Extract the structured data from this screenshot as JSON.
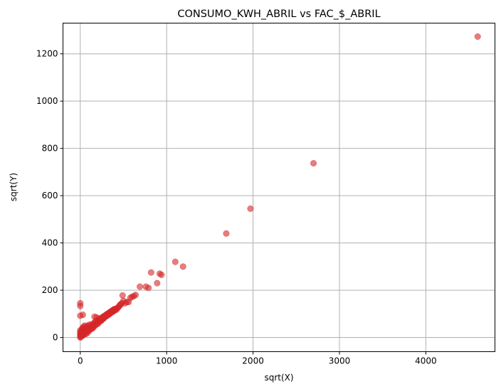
{
  "chart_data": {
    "type": "scatter",
    "title": "CONSUMO_KWH_ABRIL vs FAC_$_ABRIL",
    "xlabel": "sqrt(X)",
    "ylabel": "sqrt(Y)",
    "xlim": [
      -200,
      4800
    ],
    "ylim": [
      -60,
      1330
    ],
    "xticks": [
      0,
      1000,
      2000,
      3000,
      4000
    ],
    "yticks": [
      0,
      200,
      400,
      600,
      800,
      1000,
      1200
    ],
    "xtick_labels": [
      "0",
      "1000",
      "2000",
      "3000",
      "4000"
    ],
    "ytick_labels": [
      "0",
      "200",
      "400",
      "600",
      "800",
      "1000",
      "1200"
    ],
    "grid": true,
    "marker_color": "#d62728",
    "points": [
      [
        0,
        0
      ],
      [
        0,
        8
      ],
      [
        0,
        15
      ],
      [
        0,
        22
      ],
      [
        0,
        30
      ],
      [
        0,
        92
      ],
      [
        0,
        133
      ],
      [
        0,
        145
      ],
      [
        5,
        3
      ],
      [
        8,
        12
      ],
      [
        10,
        20
      ],
      [
        12,
        5
      ],
      [
        15,
        28
      ],
      [
        18,
        10
      ],
      [
        20,
        35
      ],
      [
        22,
        18
      ],
      [
        25,
        40
      ],
      [
        28,
        22
      ],
      [
        30,
        8
      ],
      [
        30,
        96
      ],
      [
        32,
        30
      ],
      [
        35,
        15
      ],
      [
        38,
        45
      ],
      [
        40,
        12
      ],
      [
        42,
        25
      ],
      [
        45,
        35
      ],
      [
        48,
        18
      ],
      [
        50,
        50
      ],
      [
        55,
        22
      ],
      [
        60,
        30
      ],
      [
        62,
        42
      ],
      [
        65,
        15
      ],
      [
        70,
        38
      ],
      [
        75,
        25
      ],
      [
        80,
        48
      ],
      [
        85,
        20
      ],
      [
        90,
        35
      ],
      [
        95,
        52
      ],
      [
        100,
        28
      ],
      [
        105,
        40
      ],
      [
        110,
        32
      ],
      [
        115,
        55
      ],
      [
        120,
        35
      ],
      [
        125,
        45
      ],
      [
        130,
        40
      ],
      [
        135,
        50
      ],
      [
        140,
        38
      ],
      [
        145,
        55
      ],
      [
        150,
        42
      ],
      [
        155,
        60
      ],
      [
        160,
        48
      ],
      [
        165,
        88
      ],
      [
        170,
        65
      ],
      [
        175,
        52
      ],
      [
        180,
        70
      ],
      [
        185,
        55
      ],
      [
        190,
        85
      ],
      [
        195,
        62
      ],
      [
        200,
        68
      ],
      [
        205,
        58
      ],
      [
        210,
        75
      ],
      [
        215,
        65
      ],
      [
        220,
        80
      ],
      [
        225,
        68
      ],
      [
        230,
        72
      ],
      [
        235,
        78
      ],
      [
        240,
        70
      ],
      [
        245,
        82
      ],
      [
        250,
        75
      ],
      [
        255,
        85
      ],
      [
        260,
        78
      ],
      [
        265,
        88
      ],
      [
        270,
        80
      ],
      [
        275,
        90
      ],
      [
        280,
        85
      ],
      [
        285,
        92
      ],
      [
        290,
        88
      ],
      [
        295,
        95
      ],
      [
        300,
        90
      ],
      [
        305,
        98
      ],
      [
        310,
        92
      ],
      [
        315,
        100
      ],
      [
        320,
        95
      ],
      [
        325,
        102
      ],
      [
        330,
        98
      ],
      [
        335,
        105
      ],
      [
        340,
        100
      ],
      [
        345,
        108
      ],
      [
        350,
        103
      ],
      [
        355,
        110
      ],
      [
        360,
        106
      ],
      [
        365,
        112
      ],
      [
        370,
        108
      ],
      [
        375,
        115
      ],
      [
        380,
        110
      ],
      [
        385,
        118
      ],
      [
        390,
        113
      ],
      [
        395,
        120
      ],
      [
        400,
        115
      ],
      [
        405,
        118
      ],
      [
        410,
        120
      ],
      [
        415,
        122
      ],
      [
        420,
        118
      ],
      [
        430,
        125
      ],
      [
        440,
        128
      ],
      [
        450,
        132
      ],
      [
        460,
        138
      ],
      [
        470,
        140
      ],
      [
        480,
        145
      ],
      [
        490,
        178
      ],
      [
        500,
        155
      ],
      [
        520,
        145
      ],
      [
        540,
        150
      ],
      [
        560,
        150
      ],
      [
        580,
        168
      ],
      [
        600,
        172
      ],
      [
        620,
        175
      ],
      [
        640,
        180
      ],
      [
        690,
        215
      ],
      [
        760,
        215
      ],
      [
        790,
        210
      ],
      [
        820,
        275
      ],
      [
        890,
        230
      ],
      [
        920,
        270
      ],
      [
        940,
        265
      ],
      [
        1100,
        320
      ],
      [
        1190,
        300
      ],
      [
        1690,
        440
      ],
      [
        1970,
        545
      ],
      [
        2700,
        737
      ],
      [
        4600,
        1273
      ]
    ]
  }
}
